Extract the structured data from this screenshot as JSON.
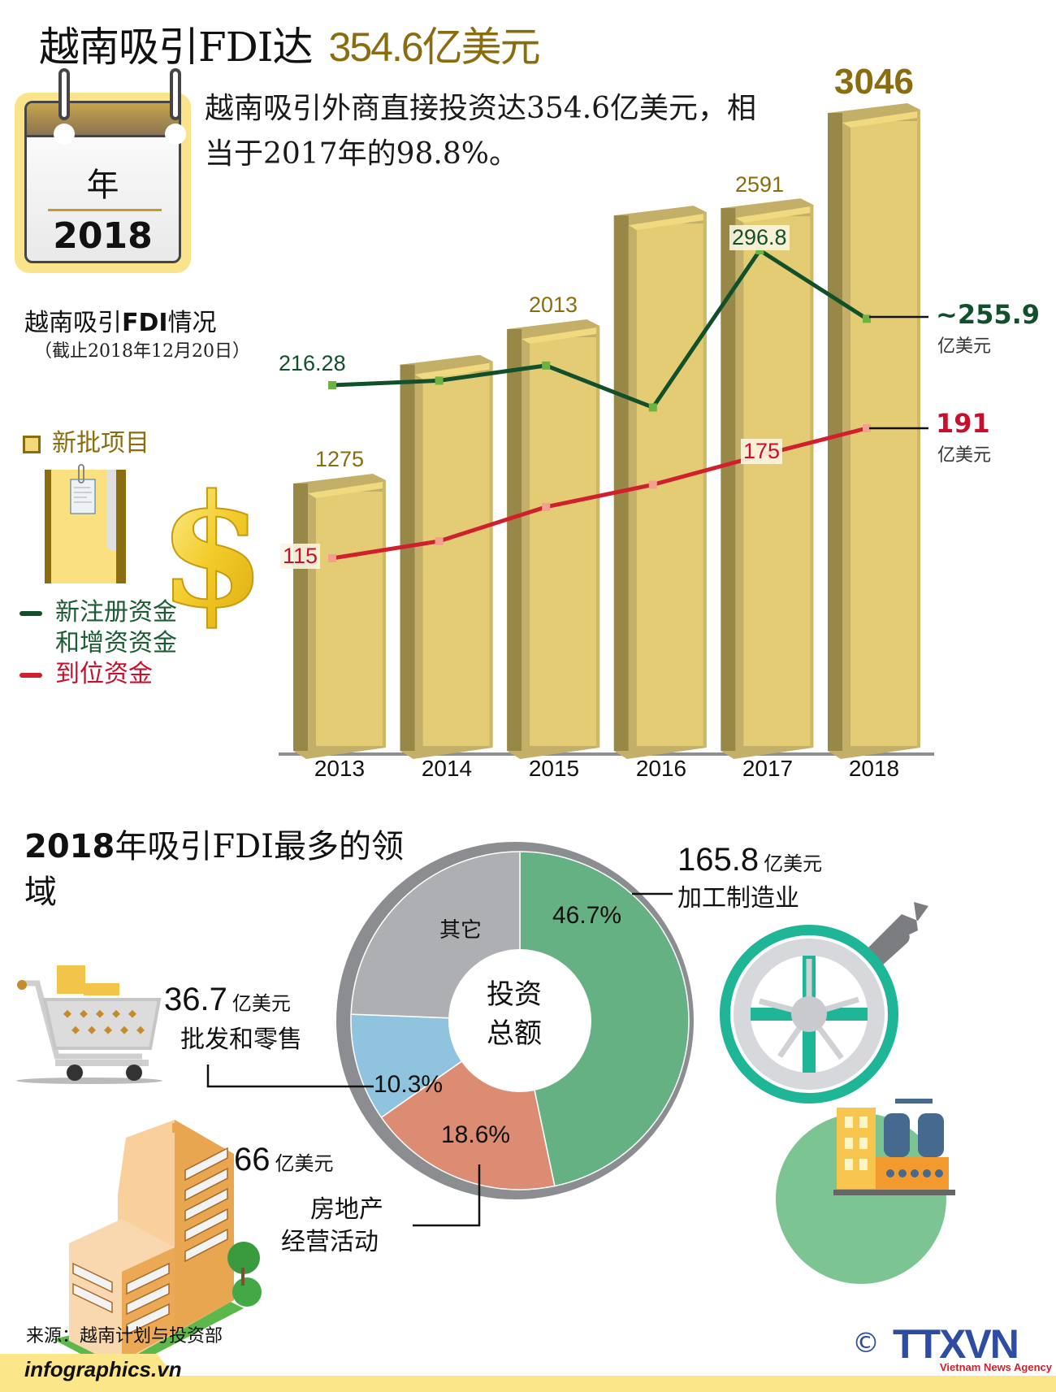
{
  "header": {
    "title_prefix": "越南吸引FDI达",
    "title_amount": "354.6亿美元",
    "summary": "越南吸引外商直接投资达354.6亿美元，相当于2017年的98.8%。"
  },
  "calendar": {
    "label": "年",
    "year": "2018"
  },
  "chart_section": {
    "title_prefix": "越南吸引",
    "title_bold": "FDI",
    "title_suffix": "情况",
    "subtitle": "（截止2018年12月20日）"
  },
  "legend": {
    "projects": "新批项目",
    "registered_line1": "新注册资金",
    "registered_line2": "和增资资金",
    "disbursed": "到位资金"
  },
  "colors": {
    "bar": "#e3cc74",
    "bar_dark": "#978848",
    "bar_mid": "#c4af68",
    "gold_text": "#8a6d0f",
    "registered_line": "#11502b",
    "registered_marker": "#6db33f",
    "disbursed_line": "#d0202e",
    "disbursed_marker": "#f4a090",
    "manufacturing": "#66b184",
    "real_estate": "#dc8c72",
    "retail": "#8fc3de",
    "other": "#aeafb2"
  },
  "chart_data": [
    {
      "type": "bar+line",
      "title": "越南吸引FDI情况（截止2018年12月20日）",
      "categories": [
        "2013",
        "2014",
        "2015",
        "2016",
        "2017",
        "2018"
      ],
      "series": [
        {
          "name": "新批项目",
          "type": "bar",
          "values": [
            1275,
            1843,
            2013,
            2556,
            2591,
            3046
          ],
          "labeled": [
            true,
            false,
            true,
            false,
            true,
            true
          ]
        },
        {
          "name": "新注册资金和增资资金",
          "type": "line",
          "unit": "亿美元",
          "values": [
            216.28,
            219.0,
            228.0,
            203.0,
            296.8,
            255.9
          ],
          "labeled": [
            true,
            false,
            false,
            false,
            true,
            true
          ]
        },
        {
          "name": "到位资金",
          "type": "line",
          "unit": "亿美元",
          "values": [
            115,
            125,
            145,
            158,
            175,
            191
          ],
          "labeled": [
            true,
            false,
            false,
            false,
            true,
            true
          ]
        }
      ],
      "labels": {
        "bars": [
          "1275",
          "",
          "2013",
          "",
          "2591",
          "3046"
        ],
        "registered": [
          "216.28",
          "",
          "",
          "",
          "296.8",
          "~255.9"
        ],
        "disbursed": [
          "115",
          "",
          "",
          "",
          "175",
          "191"
        ]
      },
      "end_unit": "亿美元",
      "xlabel": "",
      "ylabel": "",
      "grid": false,
      "legend_position": "left"
    },
    {
      "type": "pie",
      "title": "2018年吸引FDI最多的领域",
      "center_label": "投资总额",
      "categories": [
        "加工制造业",
        "房地产经营活动",
        "批发和零售",
        "其它"
      ],
      "values": [
        46.7,
        18.6,
        10.3,
        24.4
      ],
      "labels": [
        "46.7%",
        "18.6%",
        "10.3%",
        "其它"
      ],
      "amounts": [
        "165.8",
        "66",
        "36.7",
        ""
      ],
      "unit": "亿美元"
    }
  ],
  "sectors": {
    "title_bold": "2018",
    "title_rest": "年吸引FDI最多的领域",
    "center_line1": "投资",
    "center_line2": "总额",
    "manufacturing": {
      "amount": "165.8",
      "unit": "亿美元",
      "label": "加工制造业",
      "pct": "46.7%"
    },
    "real_estate": {
      "amount": "66",
      "unit": "亿美元",
      "label_line1": "房地产",
      "label_line2": "经营活动",
      "pct": "18.6%"
    },
    "retail": {
      "amount": "36.7",
      "unit": "亿美元",
      "label": "批发和零售",
      "pct": "10.3%"
    },
    "other": {
      "label": "其它"
    }
  },
  "footer": {
    "source": "来源：越南计划与投资部",
    "site": "infographics.vn",
    "copyright": "©",
    "agency_logo": "TTXVN",
    "agency_name": "Vietnam News Agency"
  }
}
